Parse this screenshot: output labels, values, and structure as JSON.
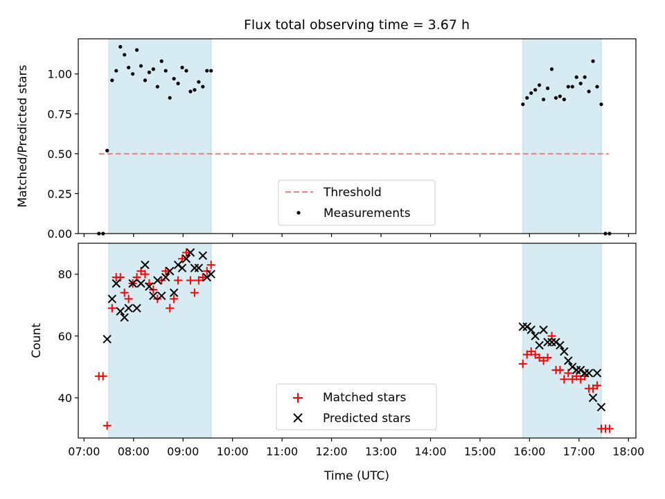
{
  "figure": {
    "title": "Flux total observing time = 3.67 h",
    "xlabel": "Time (UTC)"
  },
  "colors": {
    "shade": "#add8e6",
    "threshold": "#f08080",
    "matched": "#ff0000",
    "predicted": "#000000",
    "measurement": "#000000"
  },
  "chart_data": [
    {
      "type": "scatter",
      "panel": "top",
      "ylabel": "Matched/Predicted stars",
      "xlim": [
        "06:53",
        "18:09"
      ],
      "ylim": [
        0,
        1.22
      ],
      "yticks": [
        0.0,
        0.25,
        0.5,
        0.75,
        1.0
      ],
      "ytick_labels": [
        "0.00",
        "0.25",
        "0.50",
        "0.75",
        "1.00"
      ],
      "shaded_intervals": [
        [
          "07:30",
          "09:34"
        ],
        [
          "15:52",
          "17:27"
        ]
      ],
      "threshold": {
        "label": "Threshold",
        "y": 0.5,
        "x_range": [
          "07:18",
          "17:36"
        ]
      },
      "legend": {
        "location": "lower-center",
        "entries": [
          "Threshold",
          "Measurements"
        ]
      },
      "series": [
        {
          "name": "Measurements",
          "marker": "dot",
          "points": [
            [
              "07:18",
              0.0
            ],
            [
              "07:23",
              0.0
            ],
            [
              "07:28",
              0.52
            ],
            [
              "07:34",
              0.96
            ],
            [
              "07:39",
              1.02
            ],
            [
              "07:44",
              1.17
            ],
            [
              "07:49",
              1.12
            ],
            [
              "07:54",
              1.04
            ],
            [
              "07:59",
              1.0
            ],
            [
              "08:04",
              1.15
            ],
            [
              "08:09",
              1.05
            ],
            [
              "08:14",
              0.96
            ],
            [
              "08:19",
              1.01
            ],
            [
              "08:24",
              1.03
            ],
            [
              "08:29",
              0.92
            ],
            [
              "08:34",
              1.08
            ],
            [
              "08:39",
              1.02
            ],
            [
              "08:44",
              0.85
            ],
            [
              "08:49",
              0.97
            ],
            [
              "08:54",
              0.94
            ],
            [
              "08:59",
              1.04
            ],
            [
              "09:04",
              1.02
            ],
            [
              "09:09",
              0.89
            ],
            [
              "09:14",
              0.9
            ],
            [
              "09:19",
              0.95
            ],
            [
              "09:24",
              0.92
            ],
            [
              "09:29",
              1.02
            ],
            [
              "09:34",
              1.02
            ],
            [
              "15:52",
              0.81
            ],
            [
              "15:57",
              0.85
            ],
            [
              "16:02",
              0.88
            ],
            [
              "16:07",
              0.9
            ],
            [
              "16:12",
              0.93
            ],
            [
              "16:17",
              0.84
            ],
            [
              "16:22",
              0.91
            ],
            [
              "16:27",
              1.03
            ],
            [
              "16:32",
              0.85
            ],
            [
              "16:37",
              0.86
            ],
            [
              "16:42",
              0.84
            ],
            [
              "16:47",
              0.92
            ],
            [
              "16:52",
              0.92
            ],
            [
              "16:57",
              0.98
            ],
            [
              "17:02",
              0.94
            ],
            [
              "17:07",
              0.98
            ],
            [
              "17:12",
              0.89
            ],
            [
              "17:17",
              1.08
            ],
            [
              "17:22",
              0.92
            ],
            [
              "17:27",
              0.81
            ],
            [
              "17:32",
              0.0
            ],
            [
              "17:37",
              0.0
            ]
          ]
        }
      ]
    },
    {
      "type": "scatter",
      "panel": "bottom",
      "ylabel": "Count",
      "xlim": [
        "06:53",
        "18:09"
      ],
      "ylim": [
        27,
        90
      ],
      "yticks": [
        40,
        60,
        80
      ],
      "ytick_labels": [
        "40",
        "60",
        "80"
      ],
      "xticks": [
        "07:00",
        "08:00",
        "09:00",
        "10:00",
        "11:00",
        "12:00",
        "13:00",
        "14:00",
        "15:00",
        "16:00",
        "17:00",
        "18:00"
      ],
      "shaded_intervals": [
        [
          "07:30",
          "09:34"
        ],
        [
          "15:52",
          "17:27"
        ]
      ],
      "legend": {
        "location": "lower-center",
        "entries": [
          "Matched stars",
          "Predicted stars"
        ]
      },
      "series": [
        {
          "name": "Matched stars",
          "marker": "plus",
          "points": [
            [
              "07:18",
              47
            ],
            [
              "07:23",
              47
            ],
            [
              "07:28",
              31
            ],
            [
              "07:34",
              69
            ],
            [
              "07:39",
              79
            ],
            [
              "07:44",
              79
            ],
            [
              "07:49",
              74
            ],
            [
              "07:54",
              72
            ],
            [
              "07:59",
              77
            ],
            [
              "08:04",
              79
            ],
            [
              "08:09",
              81
            ],
            [
              "08:14",
              80
            ],
            [
              "08:19",
              77
            ],
            [
              "08:24",
              75
            ],
            [
              "08:29",
              72
            ],
            [
              "08:34",
              78
            ],
            [
              "08:39",
              81
            ],
            [
              "08:44",
              69
            ],
            [
              "08:49",
              72
            ],
            [
              "08:54",
              78
            ],
            [
              "08:59",
              85
            ],
            [
              "09:04",
              87
            ],
            [
              "09:09",
              78
            ],
            [
              "09:14",
              74
            ],
            [
              "09:19",
              78
            ],
            [
              "09:24",
              79
            ],
            [
              "09:29",
              81
            ],
            [
              "09:34",
              83
            ],
            [
              "15:52",
              51
            ],
            [
              "15:57",
              54
            ],
            [
              "16:02",
              55
            ],
            [
              "16:07",
              54
            ],
            [
              "16:12",
              53
            ],
            [
              "16:17",
              52
            ],
            [
              "16:22",
              53
            ],
            [
              "16:27",
              60
            ],
            [
              "16:32",
              49
            ],
            [
              "16:37",
              49
            ],
            [
              "16:42",
              46
            ],
            [
              "16:47",
              48
            ],
            [
              "16:52",
              46
            ],
            [
              "16:57",
              47
            ],
            [
              "17:02",
              46
            ],
            [
              "17:07",
              47
            ],
            [
              "17:12",
              43
            ],
            [
              "17:17",
              43
            ],
            [
              "17:22",
              44
            ],
            [
              "17:27",
              30
            ],
            [
              "17:32",
              30
            ],
            [
              "17:37",
              30
            ]
          ]
        },
        {
          "name": "Predicted stars",
          "marker": "x",
          "points": [
            [
              "07:28",
              59
            ],
            [
              "07:34",
              72
            ],
            [
              "07:39",
              77
            ],
            [
              "07:44",
              68
            ],
            [
              "07:49",
              66
            ],
            [
              "07:54",
              69
            ],
            [
              "07:59",
              77
            ],
            [
              "08:04",
              69
            ],
            [
              "08:09",
              77
            ],
            [
              "08:14",
              83
            ],
            [
              "08:19",
              76
            ],
            [
              "08:24",
              73
            ],
            [
              "08:29",
              78
            ],
            [
              "08:34",
              73
            ],
            [
              "08:39",
              79
            ],
            [
              "08:44",
              81
            ],
            [
              "08:49",
              74
            ],
            [
              "08:54",
              83
            ],
            [
              "08:59",
              82
            ],
            [
              "09:04",
              85
            ],
            [
              "09:09",
              87
            ],
            [
              "09:14",
              82
            ],
            [
              "09:19",
              82
            ],
            [
              "09:24",
              86
            ],
            [
              "09:29",
              79
            ],
            [
              "09:34",
              80
            ],
            [
              "15:52",
              63
            ],
            [
              "15:57",
              63
            ],
            [
              "16:02",
              62
            ],
            [
              "16:07",
              60
            ],
            [
              "16:12",
              57
            ],
            [
              "16:17",
              62
            ],
            [
              "16:22",
              58
            ],
            [
              "16:27",
              58
            ],
            [
              "16:32",
              58
            ],
            [
              "16:37",
              57
            ],
            [
              "16:42",
              55
            ],
            [
              "16:47",
              52
            ],
            [
              "16:52",
              50
            ],
            [
              "16:57",
              49
            ],
            [
              "17:02",
              49
            ],
            [
              "17:07",
              48
            ],
            [
              "17:12",
              48
            ],
            [
              "17:17",
              40
            ],
            [
              "17:22",
              48
            ],
            [
              "17:27",
              37
            ]
          ]
        }
      ]
    }
  ]
}
